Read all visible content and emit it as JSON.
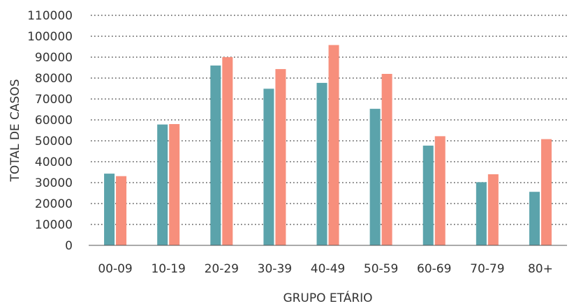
{
  "chart_data": {
    "type": "bar",
    "title": "",
    "xlabel": "GRUPO ETÁRIO",
    "ylabel": "TOTAL DE CASOS",
    "categories": [
      "00-09",
      "10-19",
      "20-29",
      "30-39",
      "40-49",
      "50-59",
      "60-69",
      "70-79",
      "80+"
    ],
    "series": [
      {
        "color": "#5ba3ab",
        "values": [
          34300,
          57800,
          86000,
          74900,
          77700,
          65300,
          47700,
          30200,
          25600
        ]
      },
      {
        "color": "#f78f7c",
        "values": [
          33100,
          58000,
          90000,
          84300,
          95800,
          82000,
          52200,
          34000,
          50800
        ]
      }
    ],
    "ylim": [
      0,
      110000
    ],
    "yticks": [
      "0",
      "10000",
      "20000",
      "30000",
      "40000",
      "50000",
      "60000",
      "70000",
      "80000",
      "90000",
      "100000",
      "110000"
    ],
    "grid": true,
    "grid_style": "dotted",
    "legend": "none"
  }
}
